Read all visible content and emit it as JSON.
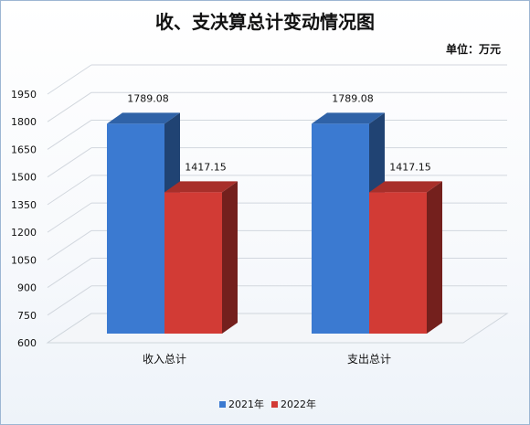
{
  "chart_data": {
    "type": "bar",
    "title": "收、支决算总计变动情况图",
    "unit": "单位：万元",
    "categories": [
      "收入总计",
      "支出总计"
    ],
    "series": [
      {
        "name": "2021年",
        "values": [
          1789.08,
          1789.08
        ],
        "labels": [
          "1789.08",
          "1789.08"
        ],
        "color": "#3b7ad1"
      },
      {
        "name": "2022年",
        "values": [
          1417.15,
          1417.15
        ],
        "labels": [
          "1417.15",
          "1417.15"
        ],
        "color": "#d23b35"
      }
    ],
    "yticks": [
      "600",
      "750",
      "900",
      "1050",
      "1200",
      "1350",
      "1500",
      "1650",
      "1800",
      "1950"
    ],
    "ylim": [
      600,
      1950
    ],
    "grid": true,
    "legend": "bottom"
  }
}
